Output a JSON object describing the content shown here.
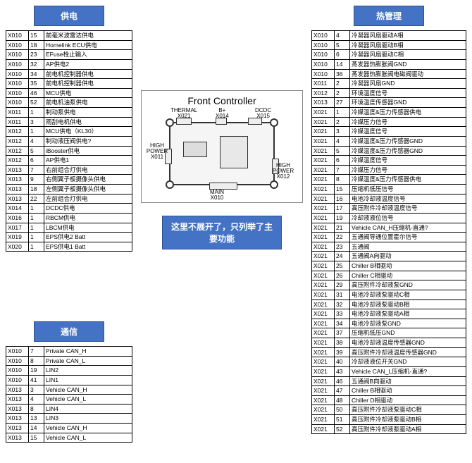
{
  "headers": {
    "power": "供电",
    "comm": "通信",
    "thermal": "热管理"
  },
  "note": "这里不展开了，只列举了主要功能",
  "frontController": {
    "title": "Front Controller",
    "ports": {
      "thermal": {
        "name": "THERMAL",
        "id": "X021"
      },
      "bplus": {
        "name": "B+",
        "id": "X014"
      },
      "dcdc": {
        "name": "DCDC",
        "id": "X015"
      },
      "highPowerL": {
        "name": "HIGH POWER",
        "id": "X011"
      },
      "highPowerR": {
        "name": "HIGH POWER",
        "id": "X012"
      },
      "main": {
        "name": "MAIN",
        "id": "X010"
      }
    }
  },
  "power": [
    [
      "X010",
      "15",
      "前毫米波雷达供电"
    ],
    [
      "X010",
      "18",
      "Homelink ECU供电"
    ],
    [
      "X010",
      "23",
      "EFuse栓止输入"
    ],
    [
      "X010",
      "32",
      "AP供电2"
    ],
    [
      "X010",
      "34",
      "前电机控制器供电"
    ],
    [
      "X010",
      "35",
      "前电机控制器供电"
    ],
    [
      "X010",
      "46",
      "MCU供电"
    ],
    [
      "X010",
      "52",
      "前电机油泵供电"
    ],
    [
      "X011",
      "1",
      "制动泵供电"
    ],
    [
      "X011",
      "3",
      "雨刮电机供电"
    ],
    [
      "X012",
      "1",
      "MCU供电（KL30）"
    ],
    [
      "X012",
      "4",
      "制动液压阀供电?"
    ],
    [
      "X012",
      "5",
      "iBooster供电"
    ],
    [
      "X012",
      "6",
      "AP供电1"
    ],
    [
      "X013",
      "7",
      "右前组合灯供电"
    ],
    [
      "X013",
      "9",
      "右侧翼子板摄像头供电"
    ],
    [
      "X013",
      "18",
      "左侧翼子板摄像头供电"
    ],
    [
      "X013",
      "22",
      "左前组合灯供电"
    ],
    [
      "X014",
      "1",
      "DCDC供电"
    ],
    [
      "X016",
      "1",
      "RBCM供电"
    ],
    [
      "X017",
      "1",
      "LBCM供电"
    ],
    [
      "X019",
      "1",
      "EPS供电2 Batt"
    ],
    [
      "X020",
      "1",
      "EPS供电1 Batt"
    ]
  ],
  "comm": [
    [
      "X010",
      "7",
      "Private CAN_H"
    ],
    [
      "X010",
      "8",
      "Private CAN_L"
    ],
    [
      "X010",
      "19",
      "LIN2"
    ],
    [
      "X010",
      "41",
      "LIN1"
    ],
    [
      "X013",
      "3",
      "Vehicle CAN_H"
    ],
    [
      "X013",
      "4",
      "Vehicle CAN_L"
    ],
    [
      "X013",
      "8",
      "LIN4"
    ],
    [
      "X013",
      "13",
      "LIN3"
    ],
    [
      "X013",
      "14",
      "Vehicle CAN_H"
    ],
    [
      "X013",
      "15",
      "Vehicle CAN_L"
    ]
  ],
  "thermal": [
    [
      "X010",
      "4",
      "冷凝器风扇驱动A相"
    ],
    [
      "X010",
      "5",
      "冷凝器风扇驱动B相"
    ],
    [
      "X010",
      "6",
      "冷凝器风扇驱动C相"
    ],
    [
      "X010",
      "14",
      "蒸发器热膨胀阀GND"
    ],
    [
      "X010",
      "36",
      "蒸发器热膨胀阀电磁阀驱动"
    ],
    [
      "X011",
      "2",
      "冷凝器风扇GND"
    ],
    [
      "X012",
      "2",
      "环境温度信号"
    ],
    [
      "X013",
      "27",
      "环境温度传感器GND"
    ],
    [
      "X021",
      "1",
      "冷媒温度&压力传感器供电"
    ],
    [
      "X021",
      "2",
      "冷媒压力信号"
    ],
    [
      "X021",
      "3",
      "冷媒温度信号"
    ],
    [
      "X021",
      "4",
      "冷媒温度&压力传感器GND"
    ],
    [
      "X021",
      "5",
      "冷媒温度&压力传感器GND"
    ],
    [
      "X021",
      "6",
      "冷媒温度信号"
    ],
    [
      "X021",
      "7",
      "冷媒压力信号"
    ],
    [
      "X021",
      "8",
      "冷媒温度&压力传感器供电"
    ],
    [
      "X021",
      "15",
      "压缩机低压信号"
    ],
    [
      "X021",
      "16",
      "电池冷却液温度信号"
    ],
    [
      "X021",
      "17",
      "高压附件冷却液温度信号"
    ],
    [
      "X021",
      "19",
      "冷却液液位信号"
    ],
    [
      "X021",
      "21",
      "Vehicle CAN_H压缩机-直通?"
    ],
    [
      "X021",
      "22",
      "五通阀导通位置霍尔信号"
    ],
    [
      "X021",
      "23",
      "五通阀"
    ],
    [
      "X021",
      "24",
      "五通阀A向驱动"
    ],
    [
      "X021",
      "25",
      "Chiller B相驱动"
    ],
    [
      "X021",
      "26",
      "Chiller C相驱动"
    ],
    [
      "X021",
      "29",
      "高压附件冷却液泵GND"
    ],
    [
      "X021",
      "31",
      "电池冷却液泵驱动C相"
    ],
    [
      "X021",
      "32",
      "电池冷却液泵驱动B相"
    ],
    [
      "X021",
      "33",
      "电池冷却液泵驱动A相"
    ],
    [
      "X021",
      "34",
      "电池冷却液泵GND"
    ],
    [
      "X021",
      "37",
      "压缩机低压GND"
    ],
    [
      "X021",
      "38",
      "电池冷却液温度传感器GND"
    ],
    [
      "X021",
      "39",
      "高压附件冷却液温度传感器GND"
    ],
    [
      "X021",
      "40",
      "冷却液液位开关GND"
    ],
    [
      "X021",
      "43",
      "Vehicle CAN_L压缩机-直通?"
    ],
    [
      "X021",
      "46",
      "五通阀B向驱动"
    ],
    [
      "X021",
      "47",
      "Chiller B相驱动"
    ],
    [
      "X021",
      "48",
      "Chiller D相驱动"
    ],
    [
      "X021",
      "50",
      "高压附件冷却液泵驱动C相"
    ],
    [
      "X021",
      "51",
      "高压附件冷却液泵驱动B相"
    ],
    [
      "X021",
      "52",
      "高压附件冷却液泵驱动A相"
    ]
  ]
}
